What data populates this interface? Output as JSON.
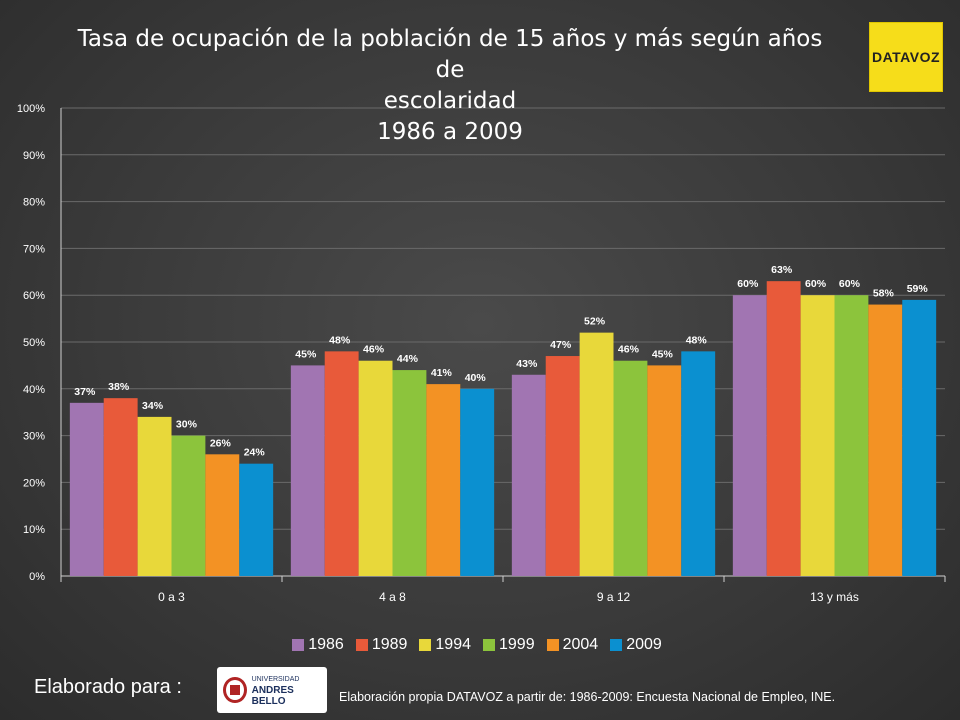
{
  "title_line1": "Tasa de ocupación de la población de 15 años y más según años de",
  "title_line2": "escolaridad",
  "title_line3": "1986 a 2009",
  "logo_text": "DATAVOZ",
  "credit_label": "Elaborado para :",
  "unab_logo": {
    "small": "UNIVERSIDAD",
    "big": "ANDRES BELLO"
  },
  "source_note": "Elaboración propia DATAVOZ a partir de: 1986-2009: Encuesta Nacional de Empleo, INE.",
  "chart_data": {
    "type": "bar",
    "title": "Tasa de ocupación de la población de 15 años y más según años de escolaridad 1986 a 2009",
    "xlabel": "",
    "ylabel": "",
    "categories": [
      "0 a 3",
      "4 a 8",
      "9 a 12",
      "13 y más"
    ],
    "ylim": [
      0,
      100
    ],
    "yticks": [
      "0%",
      "10%",
      "20%",
      "30%",
      "40%",
      "50%",
      "60%",
      "70%",
      "80%",
      "90%",
      "100%"
    ],
    "grid": true,
    "legend_position": "bottom",
    "series": [
      {
        "name": "1986",
        "color": "#a175b2",
        "values": [
          37,
          45,
          43,
          60
        ],
        "labels": [
          "37%",
          "45%",
          "43%",
          "60%"
        ]
      },
      {
        "name": "1989",
        "color": "#e85a3a",
        "values": [
          38,
          48,
          47,
          63
        ],
        "labels": [
          "38%",
          "48%",
          "47%",
          "63%"
        ]
      },
      {
        "name": "1994",
        "color": "#e8d83a",
        "values": [
          34,
          46,
          52,
          60
        ],
        "labels": [
          "34%",
          "46%",
          "52%",
          "60%"
        ]
      },
      {
        "name": "1999",
        "color": "#8cc43c",
        "values": [
          30,
          44,
          46,
          60
        ],
        "labels": [
          "30%",
          "44%",
          "46%",
          "60%"
        ]
      },
      {
        "name": "2004",
        "color": "#f39224",
        "values": [
          26,
          41,
          45,
          58
        ],
        "labels": [
          "26%",
          "41%",
          "45%",
          "58%"
        ]
      },
      {
        "name": "2009",
        "color": "#0b90d0",
        "values": [
          24,
          40,
          48,
          59
        ],
        "labels": [
          "24%",
          "40%",
          "48%",
          "59%"
        ]
      }
    ]
  }
}
